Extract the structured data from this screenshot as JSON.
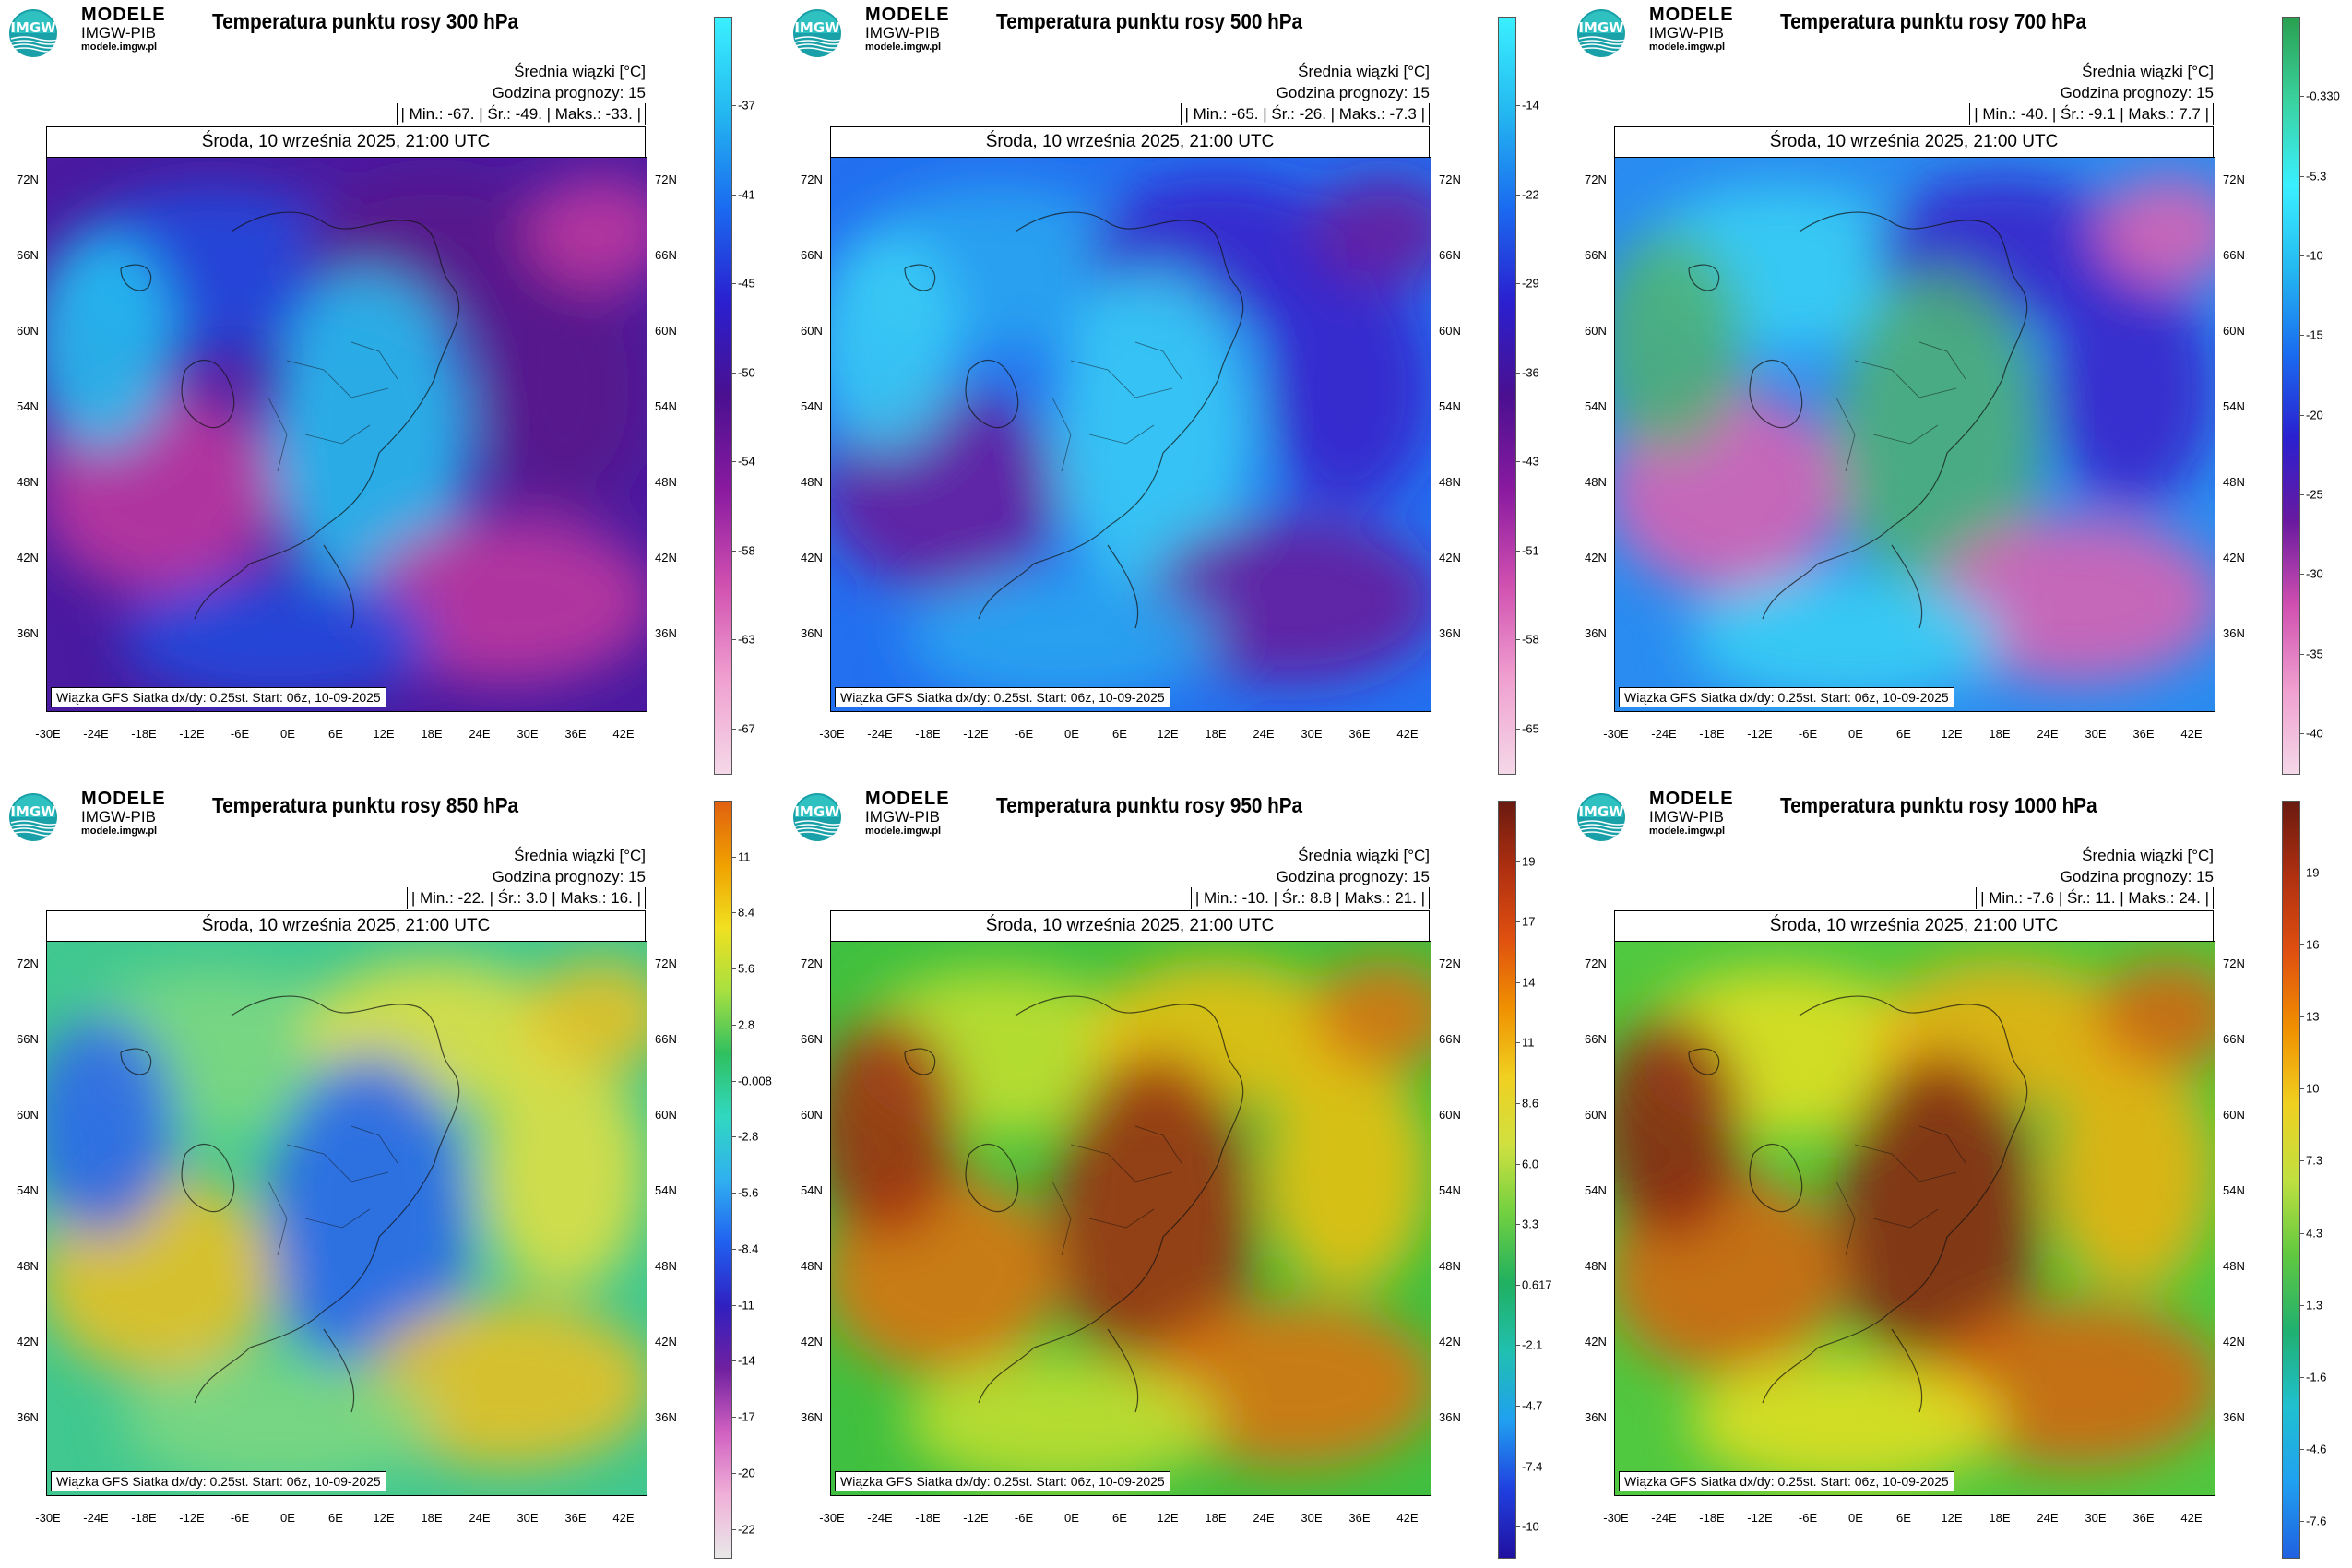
{
  "brand": {
    "line1": "MODELE",
    "line2": "IMGW-PIB",
    "line3": "modele.imgw.pl",
    "logo_text": "IMGW"
  },
  "common": {
    "mean_label": "Średnia wiązki [°C]",
    "forecast_hour": "Godzina prognozy: 15",
    "date": "Środa, 10 września 2025, 21:00 UTC",
    "footer": "Wiązka GFS Siatka dx/dy: 0.25st. Start: 06z, 10-09-2025",
    "lat_ticks": [
      "72N",
      "66N",
      "60N",
      "54N",
      "48N",
      "42N",
      "36N"
    ],
    "lon_ticks": [
      "-30E",
      "-24E",
      "-18E",
      "-12E",
      "-6E",
      "0E",
      "6E",
      "12E",
      "18E",
      "24E",
      "30E",
      "36E",
      "42E"
    ]
  },
  "panels": [
    {
      "id": "p300",
      "title": "Temperatura punktu rosy 300 hPa",
      "stats": "| Min.:   -67. | Śr.:   -49. | Maks.:   -33. |",
      "cbar": [
        "-37",
        "-41",
        "-45",
        "-50",
        "-54",
        "-58",
        "-63",
        "-67"
      ],
      "palette": [
        "#3af0ff",
        "#24b8f0",
        "#1a6cf0",
        "#2a20d0",
        "#4a1090",
        "#8a1aa0",
        "#d050b0",
        "#f0a0d0",
        "#f4d8e8"
      ],
      "map_base": [
        "#4a1aa0",
        "#1f4ee0",
        "#5a148a",
        "#c23aa0",
        "#23c6f2"
      ]
    },
    {
      "id": "p500",
      "title": "Temperatura punktu rosy 500 hPa",
      "stats": "| Min.:   -65. | Śr.:   -26. | Maks.:   -7.3 |",
      "cbar": [
        "-14",
        "-22",
        "-29",
        "-36",
        "-43",
        "-51",
        "-58",
        "-65"
      ],
      "palette": [
        "#3af0ff",
        "#24b8f0",
        "#1a6cf0",
        "#2a20d0",
        "#4a1090",
        "#8a1aa0",
        "#d050b0",
        "#f0a0d0",
        "#f4d8e8"
      ],
      "map_base": [
        "#2370f0",
        "#2aa8f0",
        "#3a22c8",
        "#6a1a9a",
        "#3ad0f4"
      ]
    },
    {
      "id": "p700",
      "title": "Temperatura punktu rosy 700 hPa",
      "stats": "| Min.:   -40. | Śr.:   -9.1 | Maks.:   7.7 |",
      "cbar": [
        "-0.330",
        "-5.3",
        "-10",
        "-15",
        "-20",
        "-25",
        "-30",
        "-35",
        "-40"
      ],
      "palette": [
        "#2aa050",
        "#3ad2a0",
        "#3af0ff",
        "#24b8f0",
        "#1a6cf0",
        "#2a20d0",
        "#6a1aa0",
        "#d050b0",
        "#f0a0d0",
        "#f4d8e8"
      ],
      "map_base": [
        "#2a8cf0",
        "#3ad4f4",
        "#3a20c8",
        "#e060b0",
        "#50b070"
      ]
    },
    {
      "id": "p850",
      "title": "Temperatura punktu rosy 850 hPa",
      "stats": "| Min.:   -22. | Śr.:   3.0 | Maks.:   16. |",
      "cbar": [
        "11",
        "8.4",
        "5.6",
        "2.8",
        "-0.008",
        "-2.8",
        "-5.6",
        "-8.4",
        "-11",
        "-14",
        "-17",
        "-20",
        "-22"
      ],
      "palette": [
        "#e06010",
        "#f0a000",
        "#f0e020",
        "#a8e040",
        "#30c060",
        "#30d8c0",
        "#30b0f0",
        "#2060f0",
        "#3020c0",
        "#7020a0",
        "#d060c0",
        "#f0b0d8",
        "#e8e8e8"
      ],
      "map_base": [
        "#40c890",
        "#80d880",
        "#e8e040",
        "#f0c020",
        "#2a60f0"
      ]
    },
    {
      "id": "p950",
      "title": "Temperatura punktu rosy 950 hPa",
      "stats": "| Min.:   -10. | Śr.:   8.8 | Maks.:   21. |",
      "cbar": [
        "19",
        "17",
        "14",
        "11",
        "8.6",
        "6.0",
        "3.3",
        "0.617",
        "-2.1",
        "-4.7",
        "-7.4",
        "-10"
      ],
      "palette": [
        "#6a1a10",
        "#b03010",
        "#e05010",
        "#f09000",
        "#f0d020",
        "#d0e040",
        "#70d040",
        "#20b060",
        "#20c0b0",
        "#20a0f0",
        "#2040e0",
        "#2010a0"
      ],
      "map_base": [
        "#40c040",
        "#c8e030",
        "#f0c010",
        "#e07010",
        "#a02810"
      ]
    },
    {
      "id": "p1000",
      "title": "Temperatura punktu rosy 1000 hPa",
      "stats": "| Min.:   -7.6 | Śr.:   11. | Maks.:   24. |",
      "cbar": [
        "19",
        "16",
        "13",
        "10",
        "7.3",
        "4.3",
        "1.3",
        "-1.6",
        "-4.6",
        "-7.6"
      ],
      "palette": [
        "#6a1a10",
        "#b03010",
        "#e05010",
        "#f09000",
        "#f0d020",
        "#c0e040",
        "#60c840",
        "#20b070",
        "#20c0d0",
        "#20a0f0",
        "#2060e0"
      ],
      "map_base": [
        "#50c840",
        "#e8e020",
        "#f0b010",
        "#d86010",
        "#8a2010"
      ]
    }
  ]
}
